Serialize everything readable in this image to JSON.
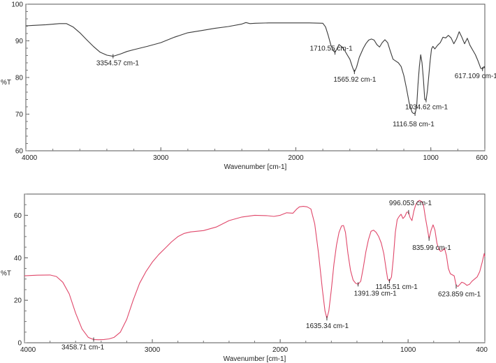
{
  "chart_data": [
    {
      "type": "line",
      "xlabel": "Wavenumber [cm-1]",
      "ylabel": "%T",
      "xlim": [
        4000,
        600
      ],
      "ylim": [
        60,
        100
      ],
      "xticks": [
        4000,
        3000,
        2000,
        1000,
        600
      ],
      "yticks": [
        60,
        70,
        80,
        90,
        100
      ],
      "line_color": "#3a3a3a",
      "series": [
        {
          "x": [
            4000,
            3950,
            3850,
            3750,
            3700,
            3650,
            3600,
            3550,
            3500,
            3450,
            3400,
            3354,
            3300,
            3250,
            3200,
            3100,
            3000,
            2900,
            2800,
            2700,
            2600,
            2500,
            2400,
            2370,
            2340,
            2300,
            2200,
            2100,
            2000,
            1900,
            1800,
            1780,
            1760,
            1740,
            1720,
            1710,
            1700,
            1680,
            1660,
            1640,
            1620,
            1600,
            1580,
            1566,
            1550,
            1530,
            1500,
            1480,
            1460,
            1440,
            1420,
            1400,
            1380,
            1360,
            1340,
            1320,
            1300,
            1280,
            1260,
            1240,
            1220,
            1200,
            1180,
            1160,
            1140,
            1130,
            1117,
            1105,
            1095,
            1085,
            1075,
            1065,
            1055,
            1045,
            1035,
            1025,
            1015,
            1005,
            995,
            985,
            970,
            950,
            930,
            910,
            890,
            870,
            850,
            830,
            810,
            790,
            770,
            750,
            730,
            710,
            690,
            670,
            650,
            630,
            617,
            605,
            600
          ],
          "y": [
            94.1,
            94.2,
            94.4,
            94.7,
            94.7,
            93.8,
            92.2,
            90.3,
            88.5,
            86.9,
            86.1,
            85.8,
            86.4,
            87.1,
            87.6,
            88.5,
            89.5,
            91.0,
            92.2,
            92.8,
            93.4,
            93.9,
            94.6,
            95.0,
            94.7,
            94.8,
            94.9,
            94.9,
            94.9,
            94.9,
            94.8,
            93.8,
            91.5,
            88.8,
            87.2,
            86.8,
            87.5,
            89.0,
            88.4,
            87.5,
            86.2,
            85.0,
            82.8,
            81.5,
            82.8,
            85.5,
            88.0,
            89.3,
            90.2,
            90.5,
            90.2,
            89.0,
            88.3,
            89.5,
            90.3,
            89.5,
            87.2,
            85.0,
            84.5,
            84.0,
            83.0,
            80.5,
            77.0,
            73.0,
            70.6,
            70.2,
            70.1,
            72.0,
            78.0,
            83.0,
            86.2,
            84.0,
            79.5,
            74.0,
            73.8,
            76.5,
            80.5,
            84.5,
            87.8,
            88.5,
            87.8,
            88.8,
            89.5,
            91.0,
            90.8,
            91.5,
            90.8,
            89.2,
            90.5,
            92.5,
            91.0,
            89.2,
            90.7,
            88.8,
            87.5,
            86.2,
            84.5,
            82.5,
            82.3,
            83.0,
            82.5
          ]
        }
      ],
      "annotations": [
        {
          "text": "3354.57 cm-1",
          "x": 3354,
          "y": 85.8
        },
        {
          "text": "1710.55 cm-1",
          "x": 1710,
          "y": 86.8
        },
        {
          "text": "1565.92 cm-1",
          "x": 1566,
          "y": 81.5
        },
        {
          "text": "1034.62 cm-1",
          "x": 1035,
          "y": 73.8
        },
        {
          "text": "1116.58 cm-1",
          "x": 1117,
          "y": 70.1
        },
        {
          "text": "617.109 cm-1",
          "x": 617,
          "y": 82.3
        }
      ]
    },
    {
      "type": "line",
      "xlabel": "Wavenumber [cm-1]",
      "ylabel": "%T",
      "xlim": [
        4000,
        400
      ],
      "ylim": [
        0,
        70
      ],
      "xticks": [
        4000,
        3000,
        2000,
        1000,
        400
      ],
      "yticks": [
        0,
        20,
        40,
        60
      ],
      "line_color": "#e0476a",
      "series": [
        {
          "x": [
            4000,
            3900,
            3800,
            3750,
            3700,
            3650,
            3600,
            3550,
            3500,
            3459,
            3420,
            3380,
            3340,
            3300,
            3250,
            3200,
            3150,
            3100,
            3050,
            3000,
            2950,
            2900,
            2850,
            2800,
            2750,
            2700,
            2600,
            2500,
            2400,
            2300,
            2200,
            2100,
            2050,
            2000,
            1950,
            1900,
            1870,
            1850,
            1820,
            1790,
            1760,
            1730,
            1700,
            1670,
            1650,
            1635,
            1620,
            1600,
            1580,
            1560,
            1540,
            1520,
            1505,
            1490,
            1470,
            1450,
            1430,
            1410,
            1391,
            1370,
            1350,
            1330,
            1310,
            1290,
            1270,
            1250,
            1230,
            1210,
            1190,
            1170,
            1160,
            1146,
            1130,
            1115,
            1100,
            1085,
            1070,
            1055,
            1040,
            1025,
            1010,
            996,
            985,
            970,
            955,
            940,
            925,
            910,
            895,
            880,
            865,
            850,
            836,
            820,
            805,
            790,
            775,
            760,
            745,
            730,
            715,
            700,
            685,
            670,
            655,
            640,
            624,
            610,
            595,
            580,
            560,
            540,
            520,
            500,
            480,
            460,
            440,
            420,
            405,
            400
          ],
          "y": [
            31.5,
            31.8,
            31.9,
            31.2,
            28.5,
            23.0,
            14.0,
            6.5,
            2.5,
            1.5,
            1.4,
            1.5,
            1.8,
            2.5,
            5.0,
            11.0,
            20.0,
            28.0,
            33.5,
            38.0,
            41.5,
            44.5,
            47.5,
            50.0,
            51.5,
            52.2,
            52.8,
            54.5,
            57.5,
            59.2,
            60.0,
            59.8,
            59.5,
            60.0,
            61.2,
            61.0,
            63.0,
            64.0,
            64.2,
            64.0,
            63.0,
            56.0,
            42.0,
            25.0,
            15.0,
            11.5,
            15.0,
            25.0,
            37.0,
            46.0,
            52.0,
            55.0,
            55.2,
            52.0,
            42.0,
            34.0,
            29.5,
            28.0,
            27.5,
            29.0,
            35.5,
            43.0,
            48.5,
            52.5,
            53.0,
            52.0,
            50.0,
            47.0,
            42.0,
            34.0,
            30.0,
            29.0,
            31.0,
            40.0,
            52.0,
            58.0,
            59.5,
            60.5,
            58.5,
            59.5,
            61.5,
            61.5,
            59.0,
            57.5,
            62.0,
            65.0,
            66.5,
            67.0,
            66.5,
            65.0,
            59.0,
            54.0,
            49.0,
            53.0,
            55.5,
            53.0,
            47.0,
            44.0,
            43.0,
            43.5,
            44.5,
            41.0,
            35.0,
            32.5,
            32.0,
            31.5,
            27.0,
            26.5,
            27.5,
            28.5,
            28.0,
            27.0,
            27.5,
            29.0,
            30.0,
            31.0,
            33.5,
            38.0,
            42.0,
            40.5
          ]
        }
      ],
      "annotations": [
        {
          "text": "3458.71 cm-1",
          "x": 3459,
          "y": 1.5
        },
        {
          "text": "1635.34 cm-1",
          "x": 1635,
          "y": 11.5
        },
        {
          "text": "1391.39 cm-1",
          "x": 1391,
          "y": 27.5
        },
        {
          "text": "1145.51 cm-1",
          "x": 1146,
          "y": 29.0
        },
        {
          "text": "996.053 cm-1",
          "x": 996,
          "y": 61.5
        },
        {
          "text": "835.99 cm-1",
          "x": 836,
          "y": 49.0
        },
        {
          "text": "623.859 cm-1",
          "x": 624,
          "y": 26.5
        }
      ]
    }
  ]
}
